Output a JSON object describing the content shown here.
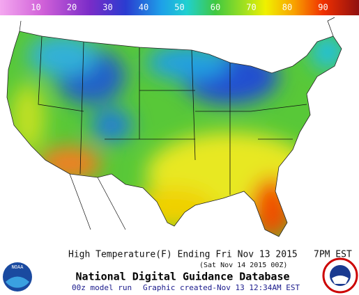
{
  "colorbar": {
    "lim": [
      0,
      100
    ],
    "ticks": [
      10,
      20,
      30,
      40,
      50,
      60,
      70,
      80,
      90
    ]
  },
  "caption": {
    "line1": "High Temperature(F) Ending Fri Nov 13 2015",
    "time": "7PM EST",
    "line2": "(Sat Nov 14 2015 00Z)",
    "title": "National Digital Guidance Database",
    "model_run": "00z model run",
    "created": "Graphic created-Nov 13 12:34AM EST"
  },
  "logos": {
    "noaa": "NOAA"
  }
}
